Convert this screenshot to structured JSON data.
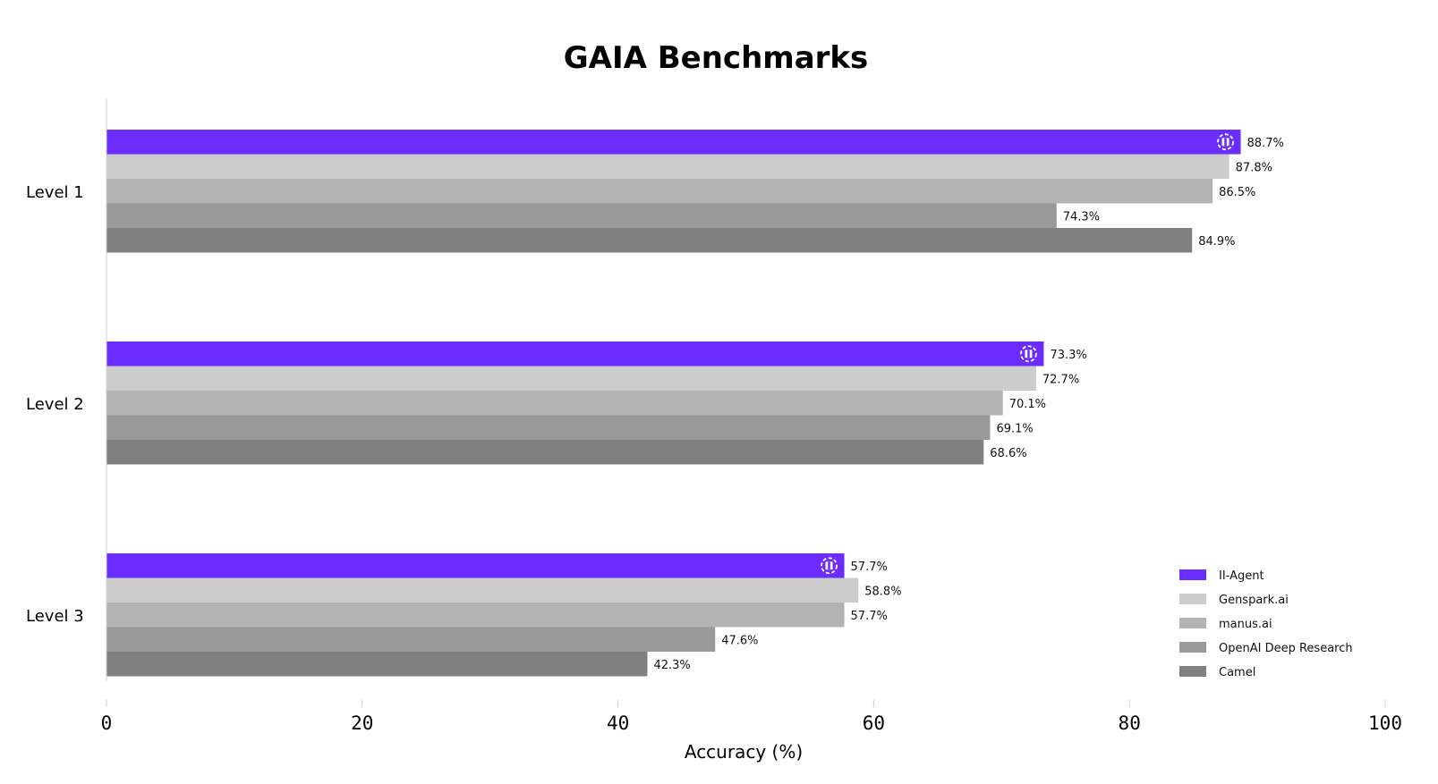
{
  "chart_data": {
    "type": "bar",
    "orientation": "horizontal",
    "title": "GAIA Benchmarks",
    "xlabel": "Accuracy (%)",
    "ylabel": "",
    "xlim": [
      0,
      100
    ],
    "xticks": [
      "0",
      "20",
      "40",
      "60",
      "80",
      "100"
    ],
    "categories": [
      "Level 1",
      "Level 2",
      "Level 3"
    ],
    "series": [
      {
        "name": "II-Agent",
        "color": "#6b2cff",
        "values": [
          88.7,
          73.3,
          57.7
        ],
        "labels": [
          "88.7%",
          "73.3%",
          "57.7%"
        ],
        "marker": "logo-icon"
      },
      {
        "name": "Genspark.ai",
        "color": "#cccccc",
        "values": [
          87.8,
          72.7,
          58.8
        ],
        "labels": [
          "87.8%",
          "72.7%",
          "58.8%"
        ]
      },
      {
        "name": "manus.ai",
        "color": "#b3b3b3",
        "values": [
          86.5,
          70.1,
          57.7
        ],
        "labels": [
          "86.5%",
          "70.1%",
          "57.7%"
        ]
      },
      {
        "name": "OpenAI Deep Research",
        "color": "#999999",
        "values": [
          74.3,
          69.1,
          47.6
        ],
        "labels": [
          "74.3%",
          "69.1%",
          "47.6%"
        ]
      },
      {
        "name": "Camel",
        "color": "#808080",
        "values": [
          84.9,
          68.6,
          42.3
        ],
        "labels": [
          "84.9%",
          "68.6%",
          "42.3%"
        ]
      }
    ],
    "legend_position": "bottom-right",
    "grid": false
  }
}
